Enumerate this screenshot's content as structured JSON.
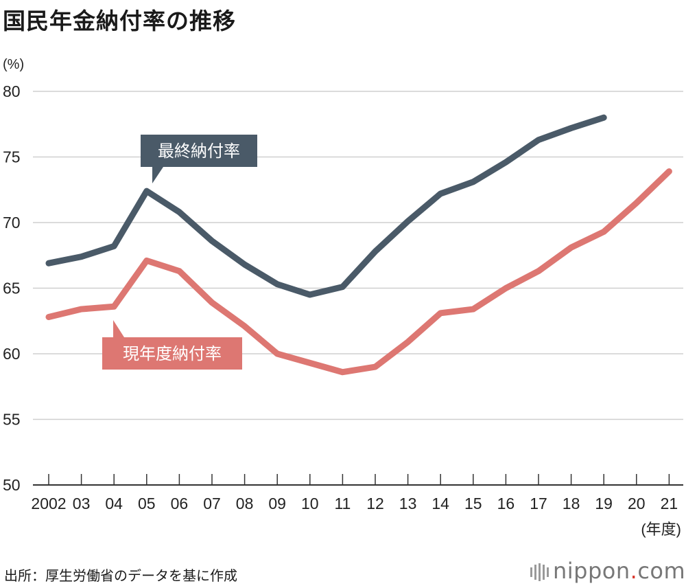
{
  "title": "国民年金納付率の推移",
  "source": "出所：厚生労働省のデータを基に作成",
  "logo": {
    "name": "nippon",
    "dot": ".",
    "tld": "com",
    "icon": "bars-icon"
  },
  "colors": {
    "final": "#4a5a68",
    "current": "#dd7772",
    "grid": "#cfcfcf",
    "axis": "#333333"
  },
  "chart_data": {
    "type": "line",
    "title": "国民年金納付率の推移",
    "ylabel": "(%)",
    "xlabel": "(年度)",
    "ylim": [
      50,
      80
    ],
    "yticks": [
      80,
      75,
      70,
      65,
      60,
      55,
      50
    ],
    "categories": [
      "2002",
      "03",
      "04",
      "05",
      "06",
      "07",
      "08",
      "09",
      "10",
      "11",
      "12",
      "13",
      "14",
      "15",
      "16",
      "17",
      "18",
      "19",
      "20",
      "21"
    ],
    "grid": true,
    "series": [
      {
        "name": "最終納付率",
        "values": [
          66.9,
          67.4,
          68.2,
          72.4,
          70.8,
          68.6,
          66.8,
          65.3,
          64.5,
          65.1,
          67.8,
          70.1,
          72.2,
          73.1,
          74.6,
          76.3,
          77.2,
          78.0,
          null,
          null
        ]
      },
      {
        "name": "現年度納付率",
        "values": [
          62.8,
          63.4,
          63.6,
          67.1,
          66.3,
          63.9,
          62.1,
          60.0,
          59.3,
          58.6,
          59.0,
          60.9,
          63.1,
          63.4,
          65.0,
          66.3,
          68.1,
          69.3,
          71.5,
          73.9
        ]
      }
    ]
  }
}
